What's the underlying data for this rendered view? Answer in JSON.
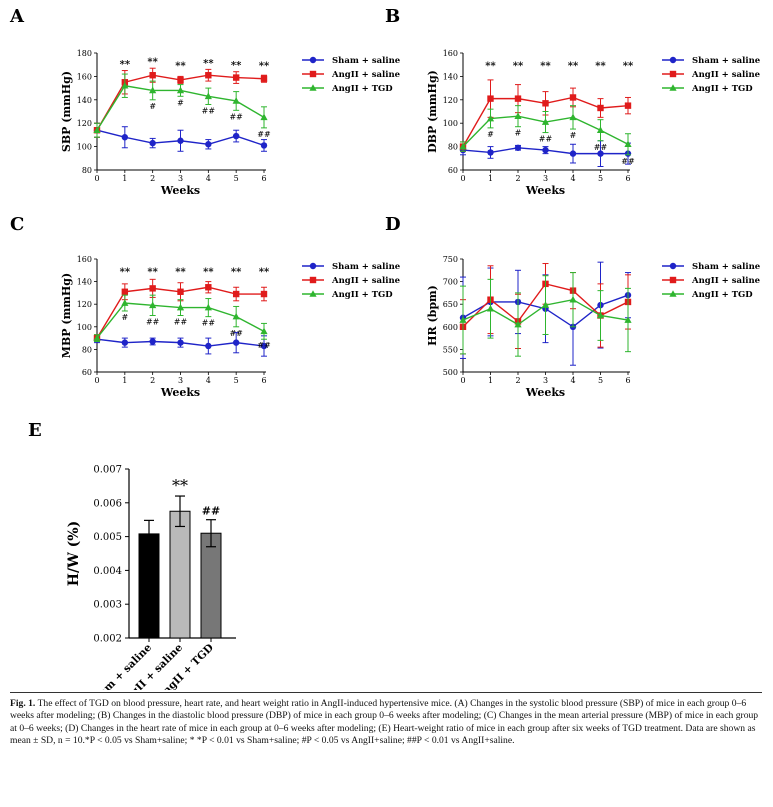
{
  "colors": {
    "sham": "#1f24c8",
    "angii": "#e01b1b",
    "tgd": "#2fb52f",
    "bar_sham": "#000000",
    "bar_angii": "#b9b9b9",
    "bar_tgd": "#777777"
  },
  "legend": [
    "Sham + saline",
    "AngII + saline",
    "AngII + TGD"
  ],
  "chart_data": [
    {
      "panel": "A",
      "type": "line",
      "xlabel": "Weeks",
      "ylabel": "SBP (mmHg)",
      "x": [
        0,
        1,
        2,
        3,
        4,
        5,
        6
      ],
      "ylim": [
        80,
        180
      ],
      "yticks": [
        80,
        100,
        120,
        140,
        160,
        180
      ],
      "series": [
        {
          "name": "Sham + saline",
          "values": [
            114,
            108,
            103,
            105,
            102,
            109,
            101
          ],
          "sd": [
            6,
            9,
            4,
            9,
            4,
            5,
            5
          ]
        },
        {
          "name": "AngII + saline",
          "values": [
            114,
            155,
            161,
            157,
            161,
            159,
            158
          ],
          "sd": [
            6,
            10,
            6,
            3,
            5,
            5,
            3
          ]
        },
        {
          "name": "AngII + TGD",
          "values": [
            114,
            152,
            148,
            148,
            143,
            139,
            125
          ],
          "sd": [
            6,
            10,
            8,
            5,
            7,
            8,
            9
          ]
        }
      ],
      "annotations_top": [
        "",
        "**",
        "**",
        "**",
        "**",
        "**",
        "**"
      ],
      "annotations_hash": [
        "",
        "",
        "#",
        "#",
        "##",
        "##",
        "##"
      ]
    },
    {
      "panel": "B",
      "type": "line",
      "xlabel": "Weeks",
      "ylabel": "DBP (mmHg)",
      "x": [
        0,
        1,
        2,
        3,
        4,
        5,
        6
      ],
      "ylim": [
        60,
        160
      ],
      "yticks": [
        60,
        80,
        100,
        120,
        140,
        160
      ],
      "series": [
        {
          "name": "Sham + saline",
          "values": [
            77,
            75,
            79,
            77,
            74,
            74,
            74
          ],
          "sd": [
            4,
            5,
            2,
            3,
            8,
            11,
            9
          ]
        },
        {
          "name": "AngII + saline",
          "values": [
            80,
            121,
            121,
            117,
            122,
            113,
            115
          ],
          "sd": [
            4,
            16,
            12,
            10,
            8,
            8,
            7
          ]
        },
        {
          "name": "AngII + TGD",
          "values": [
            80,
            104,
            106,
            101,
            105,
            94,
            82
          ],
          "sd": [
            4,
            8,
            9,
            9,
            10,
            9,
            9
          ]
        }
      ],
      "annotations_top": [
        "",
        "**",
        "**",
        "**",
        "**",
        "**",
        "**"
      ],
      "annotations_hash": [
        "",
        "#",
        "#",
        "##",
        "#",
        "##",
        "##"
      ]
    },
    {
      "panel": "C",
      "type": "line",
      "xlabel": "Weeks",
      "ylabel": "MBP (mmHg)",
      "x": [
        0,
        1,
        2,
        3,
        4,
        5,
        6
      ],
      "ylim": [
        60,
        160
      ],
      "yticks": [
        60,
        80,
        100,
        120,
        140,
        160
      ],
      "series": [
        {
          "name": "Sham + saline",
          "values": [
            89,
            86,
            87,
            86,
            83,
            86,
            83
          ],
          "sd": [
            3,
            4,
            3,
            4,
            7,
            9,
            9
          ]
        },
        {
          "name": "AngII + saline",
          "values": [
            90,
            131,
            134,
            131,
            135,
            129,
            129
          ],
          "sd": [
            3,
            7,
            8,
            8,
            5,
            6,
            6
          ]
        },
        {
          "name": "AngII + TGD",
          "values": [
            90,
            121,
            119,
            117,
            117,
            109,
            96
          ],
          "sd": [
            3,
            7,
            9,
            7,
            8,
            9,
            7
          ]
        }
      ],
      "annotations_top": [
        "",
        "**",
        "**",
        "**",
        "**",
        "**",
        "**"
      ],
      "annotations_hash": [
        "",
        "#",
        "##",
        "##",
        "##",
        "##",
        "##"
      ]
    },
    {
      "panel": "D",
      "type": "line",
      "xlabel": "Weeks",
      "ylabel": "HR (bpm)",
      "x": [
        0,
        1,
        2,
        3,
        4,
        5,
        6
      ],
      "ylim": [
        500,
        750
      ],
      "yticks": [
        500,
        550,
        600,
        650,
        700,
        750
      ],
      "series": [
        {
          "name": "Sham + saline",
          "values": [
            620,
            655,
            655,
            640,
            600,
            648,
            670
          ],
          "sd": [
            90,
            75,
            70,
            75,
            85,
            95,
            50
          ]
        },
        {
          "name": "AngII + saline",
          "values": [
            600,
            660,
            612,
            695,
            680,
            625,
            655
          ],
          "sd": [
            60,
            75,
            60,
            45,
            40,
            70,
            60
          ]
        },
        {
          "name": "AngII + TGD",
          "values": [
            615,
            640,
            605,
            648,
            660,
            625,
            615
          ],
          "sd": [
            75,
            65,
            70,
            65,
            60,
            55,
            70
          ]
        }
      ],
      "annotations_top": [],
      "annotations_hash": []
    },
    {
      "panel": "E",
      "type": "bar",
      "ylabel": "H/W (%)",
      "categories": [
        "Sham + saline",
        "AngII + saline",
        "AngII + TGD"
      ],
      "values": [
        0.00508,
        0.00575,
        0.0051
      ],
      "sd": [
        0.0004,
        0.00045,
        0.0004
      ],
      "ylim": [
        0.002,
        0.007
      ],
      "yticks": [
        "0.002",
        "0.003",
        "0.004",
        "0.005",
        "0.006",
        "0.007"
      ],
      "annotations_top": [
        "",
        "**",
        "##"
      ]
    }
  ],
  "caption": {
    "label": "Fig. 1.",
    "text": "The effect of TGD on blood pressure, heart rate, and heart weight ratio in AngII-induced hypertensive mice. (A) Changes in the systolic blood pressure (SBP) of mice in each group 0–6 weeks after modeling; (B) Changes in the diastolic blood pressure (DBP) of mice in each group 0–6 weeks after modeling; (C) Changes in the mean arterial pressure (MBP) of mice in each group at 0–6 weeks; (D) Changes in the heart rate of mice in each group at 0–6 weeks after modeling; (E) Heart-weight ratio of mice in each group after six weeks of TGD treatment. Data are shown as mean ± SD, n = 10.*P < 0.05 vs Sham+saline; * *P < 0.01 vs Sham+saline; #P < 0.05 vs AngII+saline; ##P < 0.01 vs AngII+saline."
  }
}
